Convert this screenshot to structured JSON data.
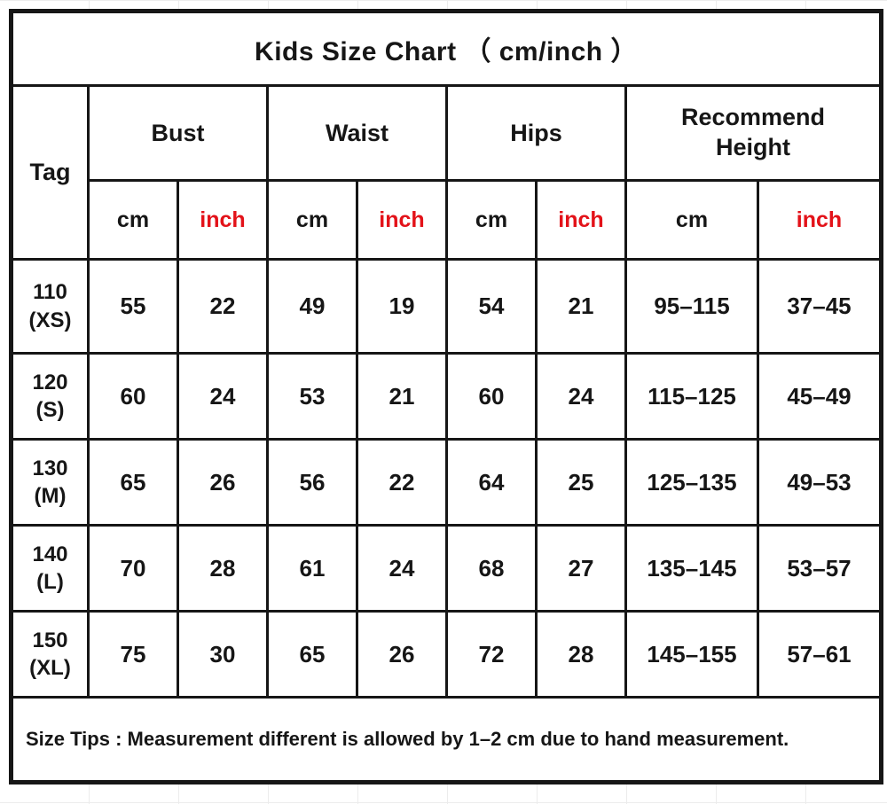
{
  "title": "Kids Size Chart （ cm/inch ）",
  "colors": {
    "text": "#161616",
    "accent_red": "#e31219",
    "border": "#161616",
    "faint_grid": "#ececec",
    "background": "#ffffff"
  },
  "header": {
    "tag": "Tag",
    "groups": [
      {
        "label": "Bust"
      },
      {
        "label": "Waist"
      },
      {
        "label": "Hips"
      },
      {
        "label": "Recommend\nHeight"
      }
    ],
    "units": {
      "cm": "cm",
      "inch": "inch"
    }
  },
  "rows": [
    {
      "tag": "110\n(XS)",
      "bust_cm": "55",
      "bust_inch": "22",
      "waist_cm": "49",
      "waist_inch": "19",
      "hips_cm": "54",
      "hips_inch": "21",
      "height_cm": "95–115",
      "height_inch": "37–45"
    },
    {
      "tag": "120\n(S)",
      "bust_cm": "60",
      "bust_inch": "24",
      "waist_cm": "53",
      "waist_inch": "21",
      "hips_cm": "60",
      "hips_inch": "24",
      "height_cm": "115–125",
      "height_inch": "45–49"
    },
    {
      "tag": "130\n(M)",
      "bust_cm": "65",
      "bust_inch": "26",
      "waist_cm": "56",
      "waist_inch": "22",
      "hips_cm": "64",
      "hips_inch": "25",
      "height_cm": "125–135",
      "height_inch": "49–53"
    },
    {
      "tag": "140\n(L)",
      "bust_cm": "70",
      "bust_inch": "28",
      "waist_cm": "61",
      "waist_inch": "24",
      "hips_cm": "68",
      "hips_inch": "27",
      "height_cm": "135–145",
      "height_inch": "53–57"
    },
    {
      "tag": "150\n(XL)",
      "bust_cm": "75",
      "bust_inch": "30",
      "waist_cm": "65",
      "waist_inch": "26",
      "hips_cm": "72",
      "hips_inch": "28",
      "height_cm": "145–155",
      "height_inch": "57–61"
    }
  ],
  "size_tips": "Size Tips : Measurement different is allowed by 1–2 cm due to hand measurement.",
  "chart_data": {
    "type": "table",
    "title": "Kids Size Chart （ cm/inch ）",
    "column_groups": [
      "Tag",
      "Bust",
      "Waist",
      "Hips",
      "Recommend Height"
    ],
    "columns": [
      "Tag",
      "Bust cm",
      "Bust inch",
      "Waist cm",
      "Waist inch",
      "Hips cm",
      "Hips inch",
      "Recommend Height cm",
      "Recommend Height inch"
    ],
    "rows": [
      [
        "110 (XS)",
        55,
        22,
        49,
        19,
        54,
        21,
        "95–115",
        "37–45"
      ],
      [
        "120 (S)",
        60,
        24,
        53,
        21,
        60,
        24,
        "115–125",
        "45–49"
      ],
      [
        "130 (M)",
        65,
        26,
        56,
        22,
        64,
        25,
        "125–135",
        "49–53"
      ],
      [
        "140 (L)",
        70,
        28,
        61,
        24,
        68,
        27,
        "135–145",
        "53–57"
      ],
      [
        "150 (XL)",
        75,
        30,
        65,
        26,
        72,
        28,
        "145–155",
        "57–61"
      ]
    ],
    "footnote": "Size Tips : Measurement different is allowed by 1–2 cm due to hand measurement.",
    "layout": {
      "unit_inch_color": "#e31219",
      "grid": "heavy black borders",
      "title_position": "top merged row"
    }
  }
}
